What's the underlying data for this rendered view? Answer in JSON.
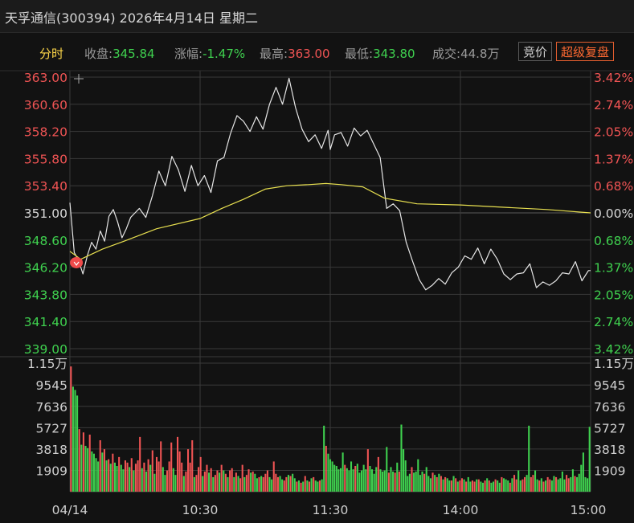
{
  "title": {
    "text": "天孚通信(300394) 2026年4月14日 星期二"
  },
  "info": {
    "mode": "分时",
    "close_label": "收盘:",
    "close_value": "345.84",
    "change_label": "涨幅:",
    "change_value": "-1.47%",
    "high_label": "最高:",
    "high_value": "363.00",
    "low_label": "最低:",
    "low_value": "343.80",
    "volume_label": "成交:",
    "volume_value": "44.8万",
    "auction_button": "竞价",
    "super_button": "超级复盘"
  },
  "colors": {
    "background": "#121212",
    "up": "#f05454",
    "down": "#3fd14f",
    "price_line": "#e6e6e6",
    "avg_line": "#e8e050",
    "grid": "#3a3a3a",
    "marker": "#f04a4a"
  },
  "chart_data": [
    {
      "type": "line",
      "x_ticks": [
        "04/14",
        "10:30",
        "11:30",
        "14:00",
        "15:00"
      ],
      "left_ticks": [
        "363.00",
        "360.60",
        "358.20",
        "355.80",
        "353.40",
        "351.00",
        "348.60",
        "346.20",
        "343.80",
        "341.40",
        "339.00"
      ],
      "right_ticks": [
        "3.42%",
        "2.74%",
        "2.05%",
        "1.37%",
        "0.68%",
        "0.00%",
        "0.68%",
        "1.37%",
        "2.05%",
        "2.74%",
        "3.42%"
      ],
      "ylim": [
        339.0,
        363.0
      ],
      "prev_close": 351.0,
      "series": [
        {
          "key": "price",
          "x": [
            0,
            2,
            4,
            6,
            8,
            10,
            12,
            14,
            16,
            18,
            20,
            22,
            24,
            26,
            28,
            30,
            32,
            35,
            38,
            41,
            44,
            47,
            50,
            53,
            56,
            59,
            62,
            65,
            68,
            71,
            74,
            77,
            80,
            83,
            86,
            89,
            92,
            95,
            98,
            101,
            104,
            107,
            110,
            113,
            116,
            119,
            120,
            122,
            125,
            128,
            131,
            134,
            137,
            140,
            143,
            146,
            149,
            152,
            155,
            158,
            161,
            164,
            167,
            170,
            173,
            176,
            179,
            182,
            185,
            188,
            191,
            194,
            197,
            200,
            203,
            206,
            209,
            212,
            215,
            218,
            221,
            224,
            227,
            230,
            233,
            236,
            239,
            240
          ],
          "values": [
            351.9,
            347.5,
            346.8,
            345.6,
            347.2,
            348.4,
            347.8,
            349.4,
            348.5,
            350.7,
            351.3,
            350.2,
            348.8,
            349.6,
            350.6,
            351.0,
            351.4,
            350.6,
            352.5,
            354.7,
            353.4,
            356.0,
            354.8,
            352.9,
            355.2,
            353.4,
            354.3,
            352.8,
            355.6,
            355.9,
            358.0,
            359.6,
            359.1,
            358.2,
            359.5,
            358.4,
            360.6,
            362.1,
            360.6,
            362.9,
            360.3,
            358.4,
            357.3,
            357.9,
            356.7,
            358.3,
            356.6,
            357.9,
            358.1,
            356.9,
            358.5,
            357.8,
            358.3,
            357.1,
            355.9,
            351.4,
            351.8,
            351.2,
            348.4,
            346.7,
            345.1,
            344.2,
            344.6,
            345.2,
            344.7,
            345.7,
            346.2,
            347.2,
            346.9,
            347.9,
            346.5,
            347.8,
            346.9,
            345.6,
            345.1,
            345.6,
            345.7,
            346.5,
            344.4,
            344.9,
            344.6,
            345.0,
            345.7,
            345.6,
            346.7,
            345.0,
            345.9,
            345.9
          ]
        },
        {
          "key": "avg",
          "x": [
            0,
            5,
            15,
            25,
            40,
            60,
            70,
            80,
            90,
            100,
            110,
            118,
            125,
            135,
            145,
            160,
            180,
            200,
            220,
            240
          ],
          "values": [
            347.6,
            346.9,
            347.8,
            348.5,
            349.6,
            350.5,
            351.4,
            352.2,
            353.1,
            353.4,
            353.5,
            353.6,
            353.5,
            353.3,
            352.3,
            351.8,
            351.7,
            351.5,
            351.3,
            351.0
          ]
        }
      ],
      "marker": {
        "x": 3,
        "value": 346.6
      }
    },
    {
      "type": "bar",
      "ticks": [
        "1.15万",
        "9545",
        "7636",
        "5727",
        "3818",
        "1909"
      ],
      "ylim": [
        0,
        11500
      ],
      "volumes": [
        11200,
        9400,
        9100,
        8600,
        5600,
        4200,
        5300,
        4100,
        3900,
        5100,
        3600,
        3400,
        3000,
        2700,
        4600,
        3500,
        3800,
        2800,
        2900,
        2500,
        3400,
        2600,
        2300,
        3100,
        2400,
        2000,
        2800,
        2600,
        2200,
        3000,
        1900,
        2500,
        2800,
        4900,
        2100,
        2600,
        1800,
        2900,
        2400,
        3700,
        1600,
        3100,
        2700,
        4500,
        2200,
        1500,
        1900,
        2700,
        4400,
        2100,
        1500,
        4900,
        3600,
        2600,
        1400,
        1800,
        3800,
        2600,
        4600,
        1300,
        1500,
        2200,
        3100,
        1400,
        1800,
        2400,
        1700,
        2100,
        1300,
        1500,
        1900,
        1700,
        2400,
        1900,
        1600,
        1300,
        1900,
        2100,
        1300,
        1700,
        1400,
        1200,
        2400,
        1300,
        1500,
        2000,
        1700,
        1800,
        1600,
        1200,
        1300,
        1400,
        1300,
        1600,
        1900,
        1300,
        1100,
        2700,
        1600,
        1300,
        1400,
        1100,
        1000,
        1300,
        1500,
        1400,
        1600,
        1200,
        900,
        1000,
        800,
        900,
        1400,
        1000,
        900,
        1200,
        1300,
        1000,
        900,
        1000,
        1100,
        5900,
        4100,
        3400,
        2900,
        2700,
        2400,
        2300,
        2000,
        2100,
        3500,
        2400,
        2100,
        1900,
        2700,
        2000,
        2300,
        2500,
        1700,
        1900,
        2400,
        2000,
        3800,
        2300,
        2000,
        1600,
        2200,
        3100,
        2000,
        1800,
        1900,
        4000,
        1700,
        2200,
        1800,
        1700,
        2600,
        1800,
        6000,
        3800,
        2800,
        1400,
        1600,
        2200,
        1700,
        1800,
        2900,
        1500,
        1800,
        1600,
        2200,
        1400,
        1200,
        1700,
        1500,
        1300,
        1600,
        1400,
        1100,
        1300,
        1200,
        1000,
        1000,
        1400,
        1200,
        900,
        1000,
        1200,
        1100,
        900,
        1300,
        900,
        1000,
        900,
        1100,
        1100,
        900,
        800,
        1000,
        1200,
        1000,
        800,
        900,
        1100,
        1000,
        800,
        1300,
        1200,
        1100,
        1000,
        800,
        1200,
        1500,
        1100,
        1900,
        1000,
        1100,
        1300,
        1500,
        5900,
        1300,
        1500,
        1900,
        1100,
        1000,
        1200,
        900,
        1000,
        1300,
        1100,
        1000,
        1400,
        1300,
        1100,
        1200,
        1800,
        1100,
        1500,
        1200,
        1300,
        2000,
        1400,
        1300,
        1600,
        2400,
        3500,
        1300,
        1200,
        5800
      ],
      "colors": [
        "up",
        "down",
        "down",
        "down",
        "up",
        "down",
        "up",
        "down",
        "down",
        "up",
        "down",
        "down",
        "down",
        "down",
        "up",
        "down",
        "up",
        "down",
        "up",
        "down",
        "up",
        "down",
        "down",
        "up",
        "down",
        "down",
        "up",
        "up",
        "down",
        "up",
        "down",
        "up",
        "up",
        "up",
        "down",
        "up",
        "down",
        "up",
        "down",
        "up",
        "down",
        "up",
        "up",
        "up",
        "down",
        "down",
        "up",
        "up",
        "up",
        "down",
        "down",
        "up",
        "up",
        "up",
        "down",
        "up",
        "up",
        "up",
        "up",
        "down",
        "up",
        "up",
        "up",
        "down",
        "up",
        "up",
        "down",
        "up",
        "down",
        "up",
        "up",
        "down",
        "up",
        "down",
        "up",
        "down",
        "up",
        "up",
        "down",
        "up",
        "down",
        "up",
        "up",
        "down",
        "up",
        "up",
        "down",
        "up",
        "down",
        "down",
        "up",
        "down",
        "up",
        "up",
        "up",
        "down",
        "down",
        "up",
        "up",
        "up",
        "down",
        "down",
        "up",
        "up",
        "down",
        "up",
        "down",
        "down",
        "up",
        "down",
        "up",
        "down",
        "up",
        "down",
        "up",
        "down",
        "up",
        "down",
        "down",
        "up",
        "down",
        "down",
        "up",
        "down",
        "down",
        "down",
        "down",
        "down",
        "down",
        "down",
        "down",
        "up",
        "down",
        "down",
        "down",
        "down",
        "up",
        "down",
        "down",
        "down",
        "down",
        "down",
        "up",
        "down",
        "down",
        "down",
        "down",
        "up",
        "down",
        "down",
        "down",
        "down",
        "up",
        "down",
        "down",
        "up",
        "down",
        "up",
        "down",
        "down",
        "down",
        "down",
        "down",
        "up",
        "down",
        "down",
        "down",
        "down",
        "down",
        "up",
        "down",
        "down",
        "down",
        "up",
        "down",
        "up",
        "down",
        "up",
        "down",
        "up",
        "down",
        "down",
        "up",
        "down",
        "up",
        "down",
        "up",
        "up",
        "down",
        "up",
        "down",
        "down",
        "up",
        "up",
        "down",
        "up",
        "down",
        "down",
        "up",
        "down",
        "up",
        "down",
        "down",
        "up",
        "down",
        "down",
        "up",
        "down",
        "down",
        "down",
        "up",
        "down",
        "up",
        "up",
        "down",
        "down",
        "up",
        "up",
        "down",
        "down",
        "up",
        "up",
        "down",
        "down",
        "up",
        "down",
        "up",
        "down",
        "up",
        "up",
        "down",
        "down",
        "up",
        "down",
        "down",
        "down",
        "down",
        "up",
        "up",
        "down",
        "down",
        "up"
      ]
    }
  ]
}
